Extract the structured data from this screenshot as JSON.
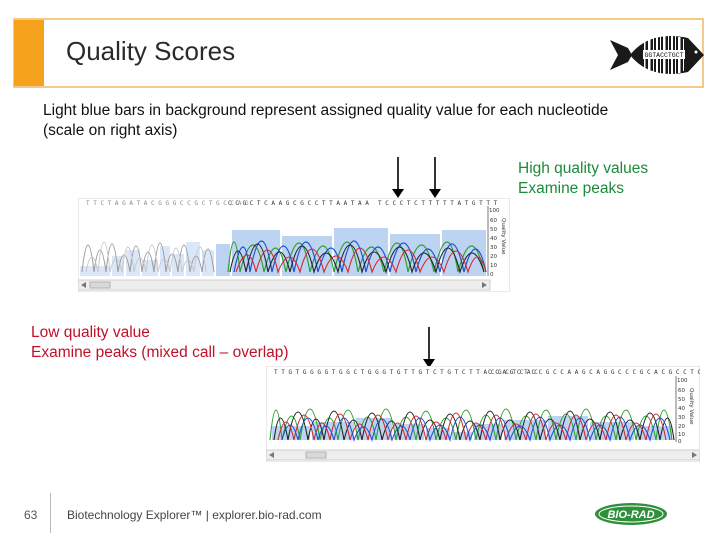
{
  "slide": {
    "title": "Quality Scores",
    "intro_lines": [
      "Light blue bars in background represent assigned quality value for each nucleotide",
      "(scale on right axis)"
    ],
    "high_notes": [
      "High quality values",
      "Examine peaks"
    ],
    "low_notes": [
      "Low quality value",
      "Examine peaks (mixed call – overlap)"
    ],
    "page_number": "63",
    "footer_text": "Biotechnology Explorer™ |   explorer.bio-rad.com",
    "logo_text": "BIO-RAD",
    "barcode_text": "GGTACCTGCT",
    "axis_label": "Quality Value",
    "axis_top": "100",
    "axis_ticks_top": [
      "60",
      "50",
      "40",
      "30",
      "20",
      "10",
      "0"
    ],
    "axis_ticks_bottom": [
      "60",
      "50",
      "40",
      "30",
      "20",
      "10",
      "0"
    ],
    "colors": {
      "accent": "#f7a21c",
      "high_text": "#1c8a3a",
      "low_text": "#c0102a",
      "quality_bar": "#bcd3f2",
      "trace_a": "#2ca02c",
      "trace_c": "#1f4fd6",
      "trace_g": "#222222",
      "trace_t": "#d62728",
      "logo_green": "#2f8f3a"
    }
  }
}
